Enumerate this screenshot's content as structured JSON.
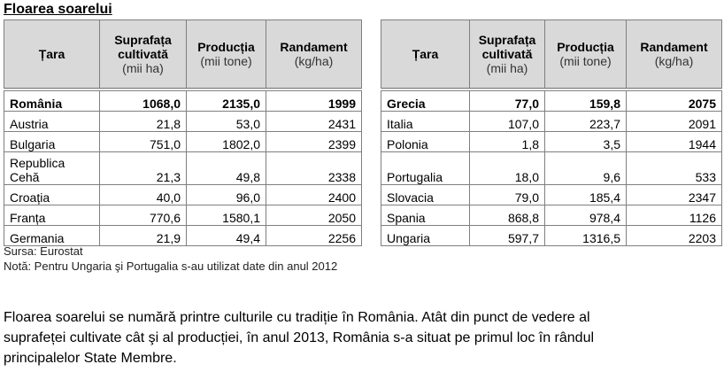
{
  "title": "Floarea soarelui",
  "tables": [
    {
      "header": [
        {
          "title": "Țara"
        },
        {
          "title": "Suprafața cultivată",
          "unit": "(mii ha)"
        },
        {
          "title": "Producția",
          "unit": "(mii tone)"
        },
        {
          "title": "Randament",
          "unit": "(kg/ha)"
        }
      ],
      "rows": [
        [
          "România",
          "1068,0",
          "2135,0",
          "1999"
        ],
        [
          "Austria",
          "21,8",
          "53,0",
          "2431"
        ],
        [
          "Bulgaria",
          "751,0",
          "1802,0",
          "2399"
        ],
        [
          "Republica Cehă",
          "21,3",
          "49,8",
          "2338"
        ],
        [
          "Croația",
          "40,0",
          "96,0",
          "2400"
        ],
        [
          "Franța",
          "770,6",
          "1580,1",
          "2050"
        ],
        [
          "Germania",
          "21,9",
          "49,4",
          "2256"
        ]
      ]
    },
    {
      "header": [
        {
          "title": "Țara"
        },
        {
          "title": "Suprafața cultivată",
          "unit": "(mii ha)"
        },
        {
          "title": "Producția",
          "unit": "(mii tone)"
        },
        {
          "title": "Randament",
          "unit": "(kg/ha)"
        }
      ],
      "rows": [
        [
          "Grecia",
          "77,0",
          "159,8",
          "2075"
        ],
        [
          "Italia",
          "107,0",
          "223,7",
          "2091"
        ],
        [
          "Polonia",
          "1,8",
          "3,5",
          "1944"
        ],
        [
          "Portugalia",
          "18,0",
          "9,6",
          "533"
        ],
        [
          "Slovacia",
          "79,0",
          "185,4",
          "2347"
        ],
        [
          "Spania",
          "868,8",
          "978,4",
          "1126"
        ],
        [
          "Ungaria",
          "597,7",
          "1316,5",
          "2203"
        ]
      ]
    }
  ],
  "source": "Sursa: Eurostat",
  "note": "Notă: Pentru Ungaria şi Portugalia s-au utilizat date din anul 2012",
  "paragraph": [
    "Floarea soarelui se numără printre culturile cu tradiție în România. Atât din punct de vedere al",
    "suprafeței cultivate cât şi al producției, în anul 2013, România s-a situat pe primul loc în rândul",
    "principalelor State Membre."
  ]
}
